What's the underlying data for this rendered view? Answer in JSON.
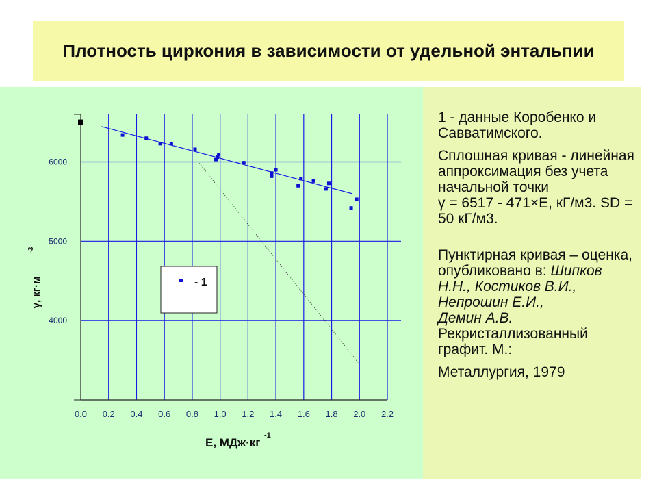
{
  "title": "Плотность циркония в зависимости от удельной энтальпии",
  "chart_data": {
    "type": "scatter",
    "xlabel": "E, МДж·кг",
    "xlabel_sup": "-1",
    "ylabel": "γ, кг·м",
    "ylabel_sup": "-3",
    "xlim": [
      0.0,
      2.2
    ],
    "ylim": [
      3000,
      6600
    ],
    "x_ticks": [
      "0.0",
      "0.2",
      "0.4",
      "0.6",
      "0.8",
      "1.0",
      "1.2",
      "1.4",
      "1.6",
      "1.8",
      "2.0",
      "2.2"
    ],
    "y_ticks": [
      "4000",
      "5000",
      "6000"
    ],
    "grid": true,
    "legend": {
      "position": "center-left",
      "label": "- 1"
    },
    "initial_point": {
      "x": 0.0,
      "y": 6500
    },
    "series": [
      {
        "name": "1",
        "points": [
          [
            0.3,
            6340
          ],
          [
            0.47,
            6300
          ],
          [
            0.57,
            6230
          ],
          [
            0.65,
            6230
          ],
          [
            0.82,
            6160
          ],
          [
            0.97,
            6030
          ],
          [
            0.98,
            6060
          ],
          [
            0.99,
            6090
          ],
          [
            1.17,
            5990
          ],
          [
            1.37,
            5860
          ],
          [
            1.37,
            5820
          ],
          [
            1.4,
            5900
          ],
          [
            1.56,
            5700
          ],
          [
            1.58,
            5790
          ],
          [
            1.67,
            5760
          ],
          [
            1.76,
            5660
          ],
          [
            1.78,
            5730
          ],
          [
            1.94,
            5420
          ],
          [
            1.98,
            5530
          ]
        ]
      }
    ],
    "fit_line": {
      "intercept": 6517,
      "slope": -471,
      "x_range": [
        0.15,
        1.95
      ]
    },
    "dotted_line": {
      "points": [
        [
          0.83,
          6030
        ],
        [
          2.0,
          3450
        ]
      ]
    }
  },
  "notes": {
    "p1": "1 - данные Коробенко и Савватимского.",
    "p2": "Сплошная кривая - линейная аппроксимация без учета начальной точки",
    "p2_formula": "γ = 6517 - 471×E, кГ/м3. SD = 50 кГ/м3.",
    "p3": "Пунктирная кривая – оценка, опубликовано в:",
    "p3_authors": [
      "Шипков Н.Н.,",
      "Костиков В.И.,",
      "Непрошин Е.И.,",
      "Демин А.В."
    ],
    "p3_book": "Рекристаллизованный графит. М.:",
    "p4": "Металлургия, 1979"
  }
}
